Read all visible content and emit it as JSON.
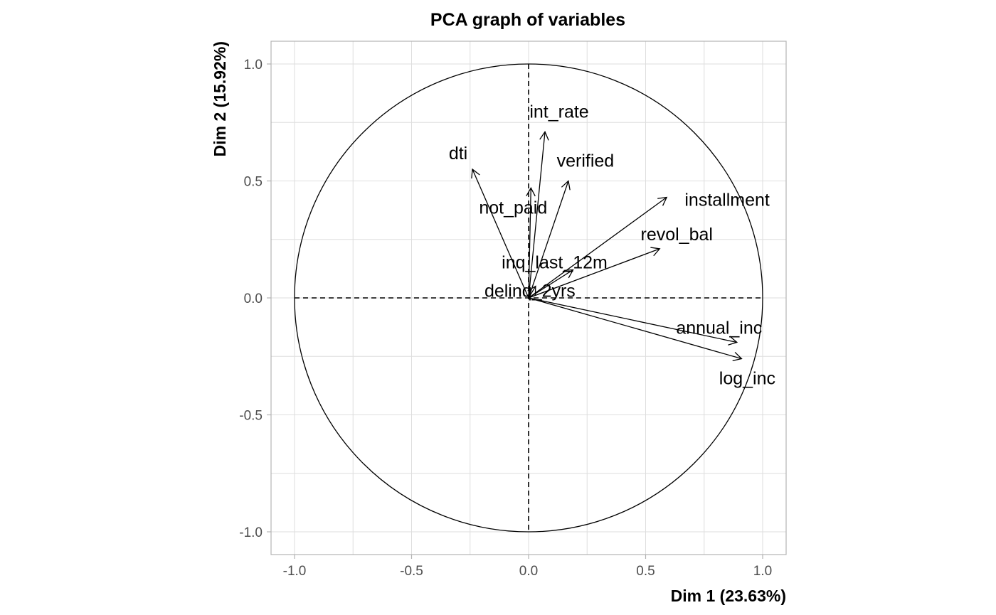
{
  "chart_data": {
    "type": "scatter",
    "subtype": "pca-correlation-circle",
    "title": "PCA graph of variables",
    "xlabel": "Dim 1 (23.63%)",
    "ylabel": "Dim 2 (15.92%)",
    "xlim": [
      -1.1,
      1.1
    ],
    "ylim": [
      -1.1,
      1.1
    ],
    "xticks": [
      -1.0,
      -0.5,
      0.0,
      0.5,
      1.0
    ],
    "yticks": [
      -1.0,
      -0.5,
      0.0,
      0.5,
      1.0
    ],
    "xtick_labels": [
      "-1.0",
      "-0.5",
      "0.0",
      "0.5",
      "1.0"
    ],
    "ytick_labels": [
      "-1.0",
      "-0.5",
      "0.0",
      "0.5",
      "1.0"
    ],
    "grid": true,
    "unit_circle": true,
    "variables": [
      {
        "name": "int_rate",
        "x": 0.07,
        "y": 0.71
      },
      {
        "name": "dti",
        "x": -0.24,
        "y": 0.55
      },
      {
        "name": "verified",
        "x": 0.17,
        "y": 0.5
      },
      {
        "name": "not_paid",
        "x": 0.01,
        "y": 0.47
      },
      {
        "name": "installment",
        "x": 0.59,
        "y": 0.43
      },
      {
        "name": "revol_bal",
        "x": 0.56,
        "y": 0.21
      },
      {
        "name": "inq_last_12m",
        "x": 0.19,
        "y": 0.12
      },
      {
        "name": "delinq_2yrs",
        "x": 0.03,
        "y": 0.05
      },
      {
        "name": "annual_inc",
        "x": 0.89,
        "y": -0.19
      },
      {
        "name": "log_inc",
        "x": 0.91,
        "y": -0.26
      }
    ]
  }
}
